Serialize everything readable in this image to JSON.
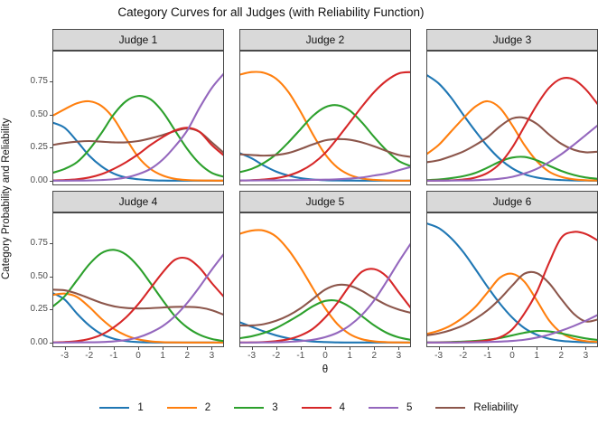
{
  "title": "Category Curves for all Judges (with Reliability Function)",
  "y_axis": {
    "label": "Category Probability and Reliability",
    "tick_labels": [
      "0.00",
      "0.25",
      "0.50",
      "0.75"
    ],
    "tick_values": [
      0,
      0.25,
      0.5,
      0.75
    ]
  },
  "x_axis": {
    "label": "θ",
    "tick_labels": [
      "-3",
      "-2",
      "-1",
      "0",
      "1",
      "2",
      "3"
    ],
    "tick_values": [
      -3,
      -2,
      -1,
      0,
      1,
      2,
      3
    ],
    "range": [
      -3.5,
      3.5
    ]
  },
  "colors": {
    "cat1": "#1f77b4",
    "cat2": "#ff7f0e",
    "cat3": "#2ca02c",
    "cat4": "#d62728",
    "cat5": "#9467bd",
    "reliability": "#8c564b",
    "strip_fill": "#d9d9d9",
    "panel_border": "#4a4a4a"
  },
  "legend": {
    "items": [
      {
        "label": "1",
        "color": "#1f77b4"
      },
      {
        "label": "2",
        "color": "#ff7f0e"
      },
      {
        "label": "3",
        "color": "#2ca02c"
      },
      {
        "label": "4",
        "color": "#d62728"
      },
      {
        "label": "5",
        "color": "#9467bd"
      },
      {
        "label": "Reliability",
        "color": "#8c564b"
      }
    ]
  },
  "chart_data": {
    "type": "line",
    "x_label": "θ",
    "y_label": "Category Probability and Reliability",
    "x_range": [
      -3.5,
      3.5
    ],
    "y_ticks": [
      0,
      0.25,
      0.5,
      0.75
    ],
    "theta": [
      -3.5,
      -3,
      -2.5,
      -2,
      -1.5,
      -1,
      -0.5,
      0,
      0.5,
      1,
      1.5,
      2,
      2.5,
      3,
      3.5
    ],
    "series_names": [
      "1",
      "2",
      "3",
      "4",
      "5",
      "Reliability"
    ],
    "facets": [
      {
        "title": "Judge 1",
        "series": [
          {
            "name": "1",
            "color": "#1f77b4",
            "y": [
              0.44,
              0.4,
              0.3,
              0.19,
              0.11,
              0.055,
              0.025,
              0.012,
              0.005,
              0.002,
              0.001,
              0.001,
              0.001,
              0.001,
              0.001
            ]
          },
          {
            "name": "2",
            "color": "#ff7f0e",
            "y": [
              0.49,
              0.54,
              0.585,
              0.6,
              0.565,
              0.47,
              0.32,
              0.18,
              0.09,
              0.04,
              0.015,
              0.006,
              0.003,
              0.002,
              0.001
            ]
          },
          {
            "name": "3",
            "color": "#2ca02c",
            "y": [
              0.06,
              0.09,
              0.14,
              0.235,
              0.36,
              0.5,
              0.6,
              0.64,
              0.615,
              0.52,
              0.38,
              0.24,
              0.13,
              0.06,
              0.03
            ]
          },
          {
            "name": "4",
            "color": "#d62728",
            "y": [
              0.003,
              0.006,
              0.012,
              0.025,
              0.05,
              0.09,
              0.14,
              0.2,
              0.27,
              0.33,
              0.38,
              0.4,
              0.37,
              0.27,
              0.19
            ]
          },
          {
            "name": "5",
            "color": "#9467bd",
            "y": [
              0.001,
              0.001,
              0.002,
              0.003,
              0.006,
              0.012,
              0.025,
              0.05,
              0.09,
              0.16,
              0.26,
              0.38,
              0.55,
              0.7,
              0.81
            ]
          },
          {
            "name": "Reliability",
            "color": "#8c564b",
            "y": [
              0.27,
              0.285,
              0.295,
              0.3,
              0.295,
              0.29,
              0.29,
              0.3,
              0.32,
              0.345,
              0.375,
              0.395,
              0.37,
              0.29,
              0.21
            ]
          }
        ]
      },
      {
        "title": "Judge 2",
        "series": [
          {
            "name": "1",
            "color": "#1f77b4",
            "y": [
              0.21,
              0.17,
              0.115,
              0.07,
              0.04,
              0.02,
              0.01,
              0.005,
              0.003,
              0.002,
              0.001,
              0.001,
              0.001,
              0.001,
              0.001
            ]
          },
          {
            "name": "2",
            "color": "#ff7f0e",
            "y": [
              0.8,
              0.82,
              0.815,
              0.77,
              0.67,
              0.52,
              0.35,
              0.2,
              0.1,
              0.045,
              0.018,
              0.007,
              0.003,
              0.001,
              0.001
            ]
          },
          {
            "name": "3",
            "color": "#2ca02c",
            "y": [
              0.065,
              0.09,
              0.135,
              0.2,
              0.29,
              0.39,
              0.49,
              0.555,
              0.57,
              0.53,
              0.44,
              0.33,
              0.23,
              0.15,
              0.11
            ]
          },
          {
            "name": "4",
            "color": "#d62728",
            "y": [
              0.002,
              0.005,
              0.01,
              0.02,
              0.04,
              0.075,
              0.13,
              0.21,
              0.32,
              0.44,
              0.56,
              0.67,
              0.755,
              0.81,
              0.82
            ]
          },
          {
            "name": "5",
            "color": "#9467bd",
            "y": [
              0.003,
              0.003,
              0.004,
              0.004,
              0.005,
              0.006,
              0.007,
              0.009,
              0.012,
              0.017,
              0.025,
              0.04,
              0.055,
              0.08,
              0.105
            ]
          },
          {
            "name": "Reliability",
            "color": "#8c564b",
            "y": [
              0.2,
              0.195,
              0.19,
              0.195,
              0.21,
              0.24,
              0.275,
              0.305,
              0.315,
              0.31,
              0.29,
              0.26,
              0.225,
              0.195,
              0.18
            ]
          }
        ]
      },
      {
        "title": "Judge 3",
        "series": [
          {
            "name": "1",
            "color": "#1f77b4",
            "y": [
              0.8,
              0.735,
              0.63,
              0.5,
              0.375,
              0.26,
              0.165,
              0.095,
              0.05,
              0.025,
              0.012,
              0.006,
              0.003,
              0.002,
              0.001
            ]
          },
          {
            "name": "2",
            "color": "#ff7f0e",
            "y": [
              0.2,
              0.27,
              0.37,
              0.47,
              0.56,
              0.6,
              0.55,
              0.42,
              0.27,
              0.15,
              0.07,
              0.03,
              0.012,
              0.005,
              0.002
            ]
          },
          {
            "name": "3",
            "color": "#2ca02c",
            "y": [
              0.005,
              0.01,
              0.02,
              0.035,
              0.06,
              0.1,
              0.145,
              0.175,
              0.18,
              0.155,
              0.115,
              0.075,
              0.045,
              0.025,
              0.015
            ]
          },
          {
            "name": "4",
            "color": "#d62728",
            "y": [
              0.001,
              0.002,
              0.004,
              0.01,
              0.025,
              0.06,
              0.13,
              0.25,
              0.41,
              0.57,
              0.7,
              0.77,
              0.765,
              0.69,
              0.575
            ]
          },
          {
            "name": "5",
            "color": "#9467bd",
            "y": [
              0.001,
              0.001,
              0.002,
              0.003,
              0.005,
              0.009,
              0.016,
              0.03,
              0.055,
              0.09,
              0.14,
              0.2,
              0.27,
              0.345,
              0.42
            ]
          },
          {
            "name": "Reliability",
            "color": "#8c564b",
            "y": [
              0.14,
              0.155,
              0.185,
              0.22,
              0.27,
              0.33,
              0.41,
              0.47,
              0.475,
              0.43,
              0.35,
              0.28,
              0.235,
              0.215,
              0.22
            ]
          }
        ]
      },
      {
        "title": "Judge 4",
        "series": [
          {
            "name": "1",
            "color": "#1f77b4",
            "y": [
              0.375,
              0.325,
              0.22,
              0.13,
              0.065,
              0.03,
              0.012,
              0.005,
              0.002,
              0.001,
              0.001,
              0.001,
              0.001,
              0.001,
              0.001
            ]
          },
          {
            "name": "2",
            "color": "#ff7f0e",
            "y": [
              0.36,
              0.37,
              0.345,
              0.27,
              0.18,
              0.105,
              0.055,
              0.025,
              0.01,
              0.004,
              0.002,
              0.001,
              0.001,
              0.001,
              0.001
            ]
          },
          {
            "name": "3",
            "color": "#2ca02c",
            "y": [
              0.27,
              0.35,
              0.47,
              0.59,
              0.675,
              0.7,
              0.665,
              0.575,
              0.45,
              0.32,
              0.2,
              0.115,
              0.06,
              0.028,
              0.012
            ]
          },
          {
            "name": "4",
            "color": "#d62728",
            "y": [
              0.002,
              0.005,
              0.012,
              0.028,
              0.06,
              0.115,
              0.19,
              0.29,
              0.41,
              0.53,
              0.625,
              0.635,
              0.565,
              0.45,
              0.345
            ]
          },
          {
            "name": "5",
            "color": "#9467bd",
            "y": [
              0.001,
              0.001,
              0.002,
              0.003,
              0.005,
              0.01,
              0.02,
              0.04,
              0.075,
              0.125,
              0.2,
              0.3,
              0.42,
              0.55,
              0.67
            ]
          },
          {
            "name": "Reliability",
            "color": "#8c564b",
            "y": [
              0.4,
              0.395,
              0.37,
              0.335,
              0.3,
              0.275,
              0.262,
              0.258,
              0.26,
              0.265,
              0.27,
              0.27,
              0.265,
              0.245,
              0.21
            ]
          }
        ]
      },
      {
        "title": "Judge 5",
        "series": [
          {
            "name": "1",
            "color": "#1f77b4",
            "y": [
              0.155,
              0.12,
              0.085,
              0.055,
              0.033,
              0.018,
              0.009,
              0.005,
              0.002,
              0.001,
              0.001,
              0.001,
              0.001,
              0.001,
              0.001
            ]
          },
          {
            "name": "2",
            "color": "#ff7f0e",
            "y": [
              0.82,
              0.845,
              0.845,
              0.8,
              0.7,
              0.565,
              0.41,
              0.26,
              0.14,
              0.065,
              0.026,
              0.01,
              0.004,
              0.002,
              0.001
            ]
          },
          {
            "name": "3",
            "color": "#2ca02c",
            "y": [
              0.033,
              0.048,
              0.073,
              0.11,
              0.16,
              0.215,
              0.275,
              0.315,
              0.315,
              0.27,
              0.2,
              0.13,
              0.075,
              0.04,
              0.021
            ]
          },
          {
            "name": "4",
            "color": "#d62728",
            "y": [
              0.001,
              0.002,
              0.005,
              0.012,
              0.026,
              0.055,
              0.105,
              0.19,
              0.3,
              0.43,
              0.535,
              0.555,
              0.5,
              0.38,
              0.26
            ]
          },
          {
            "name": "5",
            "color": "#9467bd",
            "y": [
              0.001,
              0.001,
              0.002,
              0.003,
              0.006,
              0.012,
              0.022,
              0.042,
              0.075,
              0.13,
              0.21,
              0.32,
              0.46,
              0.61,
              0.75
            ]
          },
          {
            "name": "Reliability",
            "color": "#8c564b",
            "y": [
              0.13,
              0.13,
              0.14,
              0.165,
              0.205,
              0.26,
              0.33,
              0.4,
              0.435,
              0.43,
              0.39,
              0.335,
              0.285,
              0.25,
              0.225
            ]
          }
        ]
      },
      {
        "title": "Judge 6",
        "series": [
          {
            "name": "1",
            "color": "#1f77b4",
            "y": [
              0.9,
              0.865,
              0.79,
              0.685,
              0.555,
              0.42,
              0.295,
              0.19,
              0.11,
              0.06,
              0.03,
              0.014,
              0.007,
              0.003,
              0.002
            ]
          },
          {
            "name": "2",
            "color": "#ff7f0e",
            "y": [
              0.065,
              0.09,
              0.13,
              0.19,
              0.27,
              0.38,
              0.49,
              0.52,
              0.46,
              0.32,
              0.17,
              0.075,
              0.03,
              0.012,
              0.005
            ]
          },
          {
            "name": "3",
            "color": "#2ca02c",
            "y": [
              0.002,
              0.003,
              0.005,
              0.008,
              0.013,
              0.022,
              0.035,
              0.055,
              0.075,
              0.088,
              0.085,
              0.07,
              0.05,
              0.032,
              0.02
            ]
          },
          {
            "name": "4",
            "color": "#d62728",
            "y": [
              0.001,
              0.001,
              0.002,
              0.004,
              0.008,
              0.018,
              0.04,
              0.1,
              0.22,
              0.38,
              0.6,
              0.79,
              0.835,
              0.82,
              0.77
            ]
          },
          {
            "name": "5",
            "color": "#9467bd",
            "y": [
              0.001,
              0.001,
              0.001,
              0.002,
              0.003,
              0.005,
              0.008,
              0.013,
              0.022,
              0.038,
              0.06,
              0.09,
              0.125,
              0.165,
              0.21
            ]
          },
          {
            "name": "Reliability",
            "color": "#8c564b",
            "y": [
              0.055,
              0.07,
              0.095,
              0.13,
              0.18,
              0.245,
              0.33,
              0.43,
              0.52,
              0.525,
              0.45,
              0.33,
              0.22,
              0.16,
              0.175
            ]
          }
        ]
      }
    ]
  }
}
